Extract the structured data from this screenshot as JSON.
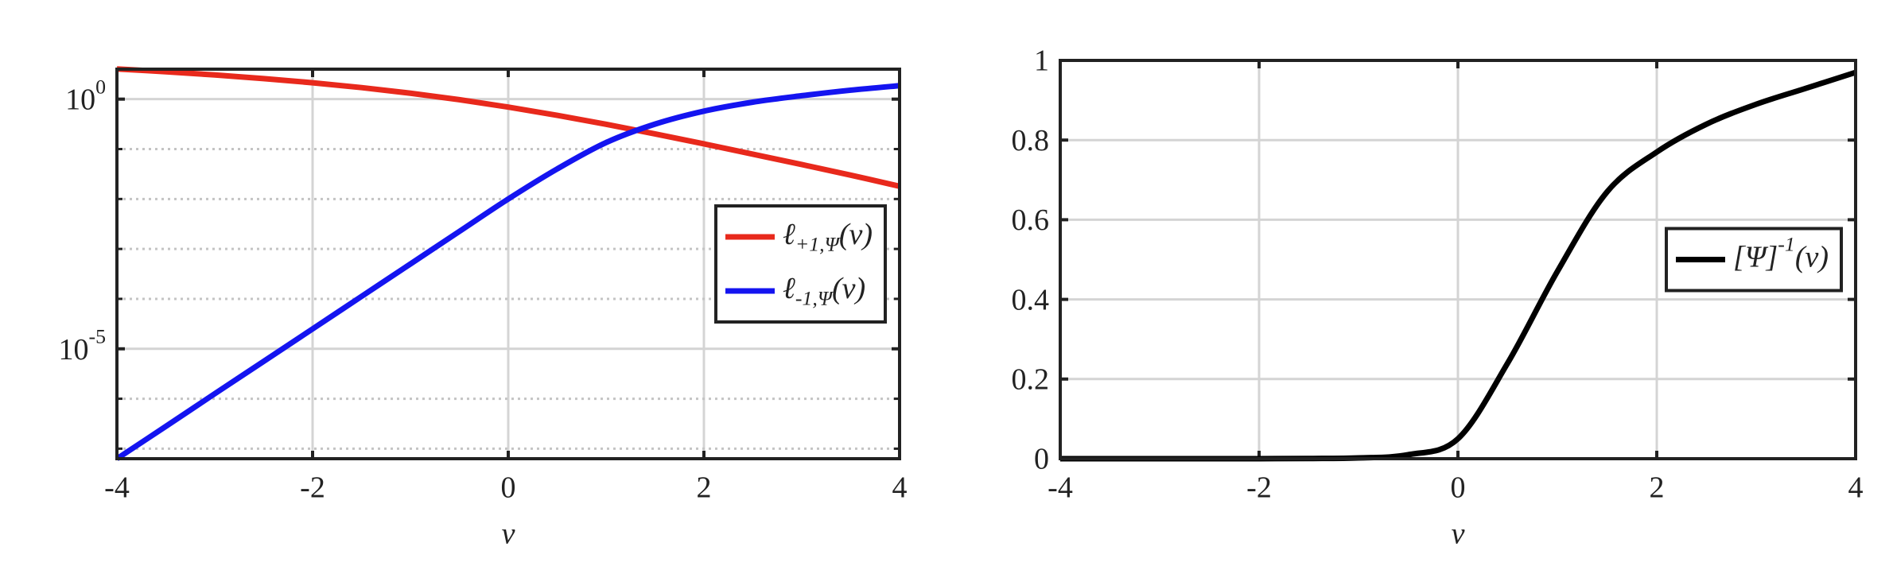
{
  "chart_data": [
    {
      "type": "line",
      "xlabel": "v",
      "x": [
        -4,
        -3.5,
        -3,
        -2.5,
        -2,
        -1.5,
        -1,
        -0.5,
        0,
        0.5,
        1,
        1.5,
        2,
        2.5,
        3,
        3.5,
        4
      ],
      "series": [
        {
          "name": "ℓ_{+1,Ψ}(v)",
          "color": "#e8291c",
          "values": [
            4.018,
            3.53,
            3.049,
            2.579,
            2.127,
            1.701,
            1.313,
            0.974,
            0.693,
            0.474,
            0.313,
            0.201,
            0.127,
            0.079,
            0.049,
            0.03,
            0.018
          ]
        },
        {
          "name": "ℓ_{-1,Ψ}(v)",
          "color": "#1414f0",
          "values": [
            6.3e-08,
            2.8e-07,
            1.26e-06,
            5.6e-06,
            2.5e-05,
            0.000112,
            0.0005,
            0.00224,
            0.01,
            0.04,
            0.135,
            0.316,
            0.575,
            0.87,
            1.17,
            1.51,
            1.86
          ]
        }
      ],
      "xlim": [
        -4,
        4
      ],
      "xticks": [
        -4,
        -2,
        0,
        2,
        4
      ],
      "ylim": [
        6.3e-08,
        3.98
      ],
      "log_y": true,
      "yticks": [
        {
          "value": 1,
          "label": "10^{0}"
        },
        {
          "value": 1e-05,
          "label": "10^{-5}"
        }
      ],
      "minor_yticks": [
        0.1,
        0.01,
        0.001,
        0.0001,
        1e-06,
        1e-07
      ],
      "grid": true,
      "legend": "east"
    },
    {
      "type": "line",
      "xlabel": "v",
      "x": [
        -4,
        -3.5,
        -3,
        -2.5,
        -2,
        -1.5,
        -1,
        -0.5,
        0,
        0.5,
        1,
        1.5,
        2,
        2.5,
        3,
        3.5,
        4
      ],
      "series": [
        {
          "name": "[Ψ]^{-1}(v)",
          "color": "#000000",
          "values": [
            0,
            0,
            0,
            0,
            0.0001,
            0.0005,
            0.002,
            0.01,
            0.05,
            0.24,
            0.47,
            0.67,
            0.77,
            0.84,
            0.89,
            0.93,
            0.97
          ]
        }
      ],
      "xlim": [
        -4,
        4
      ],
      "xticks": [
        -4,
        -2,
        0,
        2,
        4
      ],
      "ylim": [
        0,
        1
      ],
      "log_y": false,
      "yticks": [
        0,
        0.2,
        0.4,
        0.6,
        0.8,
        1
      ],
      "grid": true,
      "legend": "east"
    }
  ]
}
